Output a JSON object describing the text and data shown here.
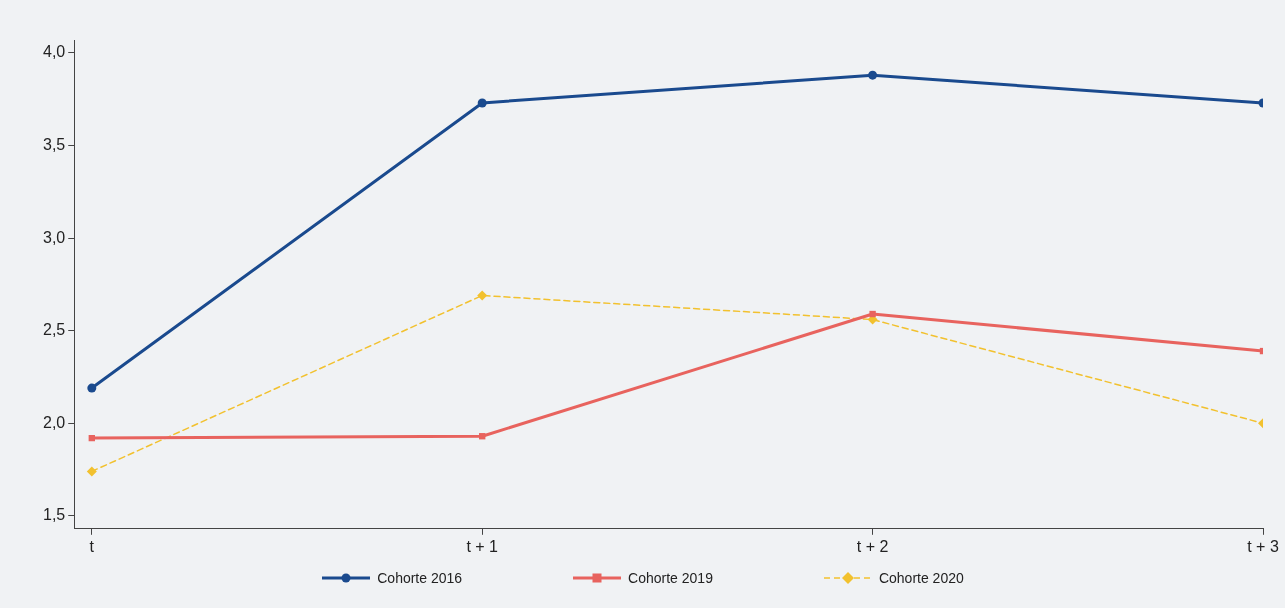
{
  "chart_data": {
    "type": "line",
    "categories": [
      "t",
      "t + 1",
      "t + 2",
      "t + 3"
    ],
    "series": [
      {
        "name": "Cohorte 2016",
        "color": "#1a4a8e",
        "values": [
          2.19,
          3.73,
          3.88,
          3.73
        ],
        "marker": "circle",
        "line_style": "solid"
      },
      {
        "name": "Cohorte 2019",
        "color": "#e8635e",
        "values": [
          1.92,
          1.93,
          2.59,
          2.39
        ],
        "marker": "square",
        "line_style": "solid"
      },
      {
        "name": "Cohorte 2020",
        "color": "#f2c12e",
        "values": [
          1.74,
          2.69,
          2.56,
          2.0
        ],
        "marker": "diamond",
        "line_style": "dashed"
      }
    ],
    "ylim": [
      1.43,
      4.07
    ],
    "yticks": [
      {
        "value": 1.5,
        "label": "1,5"
      },
      {
        "value": 2.0,
        "label": "2,0"
      },
      {
        "value": 2.5,
        "label": "2,5"
      },
      {
        "value": 3.0,
        "label": "3,0"
      },
      {
        "value": 3.5,
        "label": "3,5"
      },
      {
        "value": 4.0,
        "label": "4,0"
      }
    ],
    "grid": false,
    "legend": "bottom"
  }
}
